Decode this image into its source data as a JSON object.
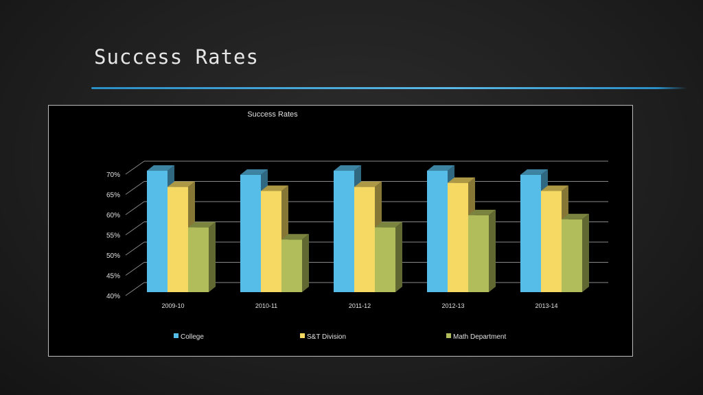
{
  "slide": {
    "title": "Success Rates"
  },
  "chart_data": {
    "type": "bar",
    "title": "Success Rates",
    "categories": [
      "2009-10",
      "2010-11",
      "2011-12",
      "2012-13",
      "2013-14"
    ],
    "series": [
      {
        "name": "College",
        "color": "#56bde8",
        "values": [
          70,
          69,
          70,
          70,
          69
        ]
      },
      {
        "name": "S&T Division",
        "color": "#f5d963",
        "values": [
          66,
          65,
          66,
          67,
          65
        ]
      },
      {
        "name": "Math Department",
        "color": "#b0bd5a",
        "values": [
          56,
          53,
          56,
          59,
          58
        ]
      }
    ],
    "ylim": [
      40,
      70
    ],
    "yticks": [
      "40%",
      "45%",
      "50%",
      "55%",
      "60%",
      "65%",
      "70%"
    ],
    "grid": true,
    "legend": "bottom",
    "style": "3d-clustered-column"
  }
}
